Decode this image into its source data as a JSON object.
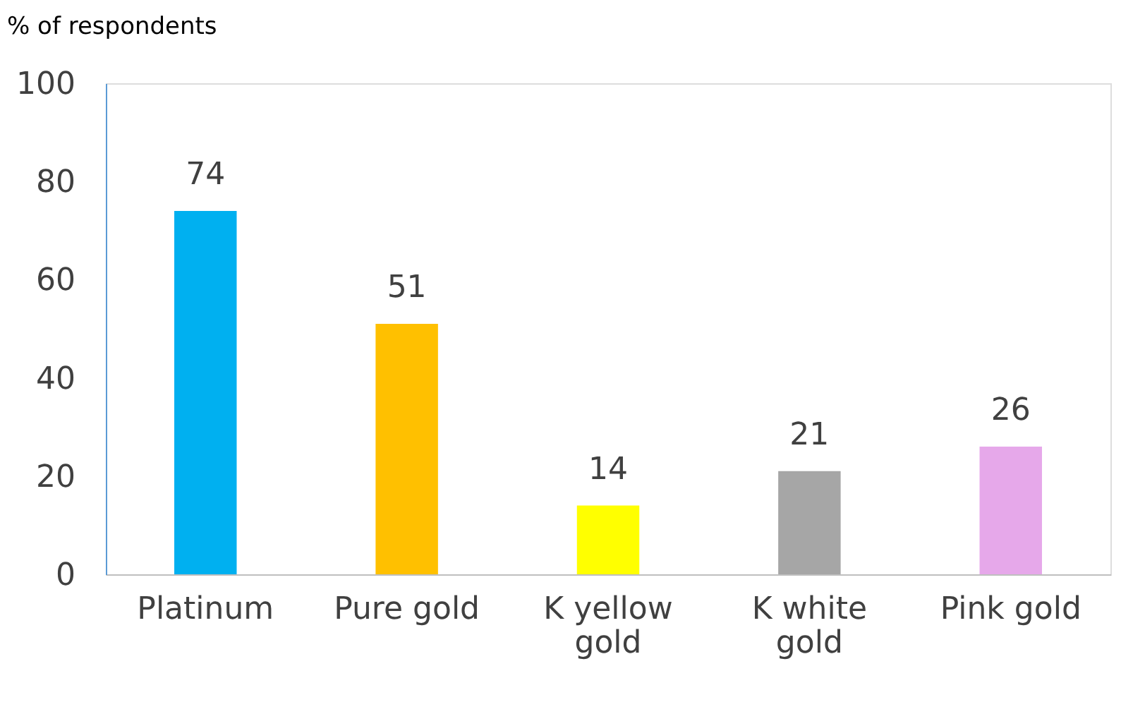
{
  "chart_data": {
    "type": "bar",
    "ylabel": "% of respondents",
    "categories": [
      "Platinum",
      "Pure gold",
      "K yellow gold",
      "K white gold",
      "Pink gold"
    ],
    "values": [
      74,
      51,
      14,
      21,
      26
    ],
    "colors": [
      "#00b0f0",
      "#ffc000",
      "#ffff00",
      "#a6a6a6",
      "#e6a8ea"
    ],
    "ylim": [
      0,
      100
    ],
    "yticks": [
      0,
      20,
      40,
      60,
      80,
      100
    ],
    "grid": false,
    "data_labels": true,
    "legend": false
  }
}
